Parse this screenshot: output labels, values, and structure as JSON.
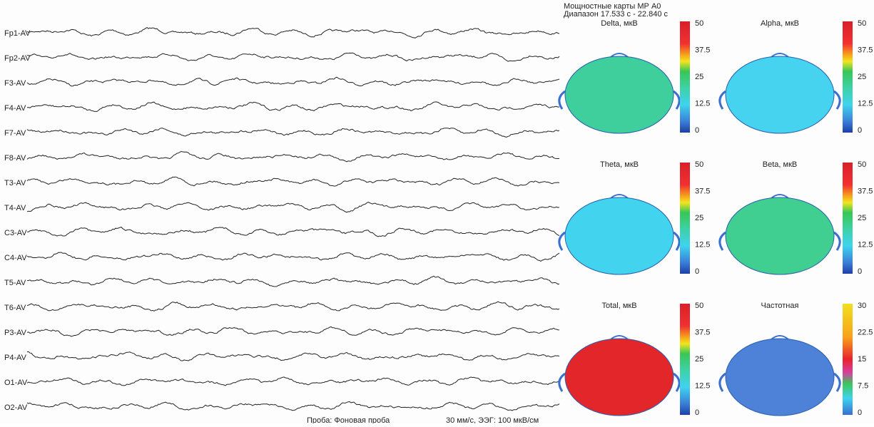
{
  "header": {
    "title": "Мощностные карты МР А0",
    "range": "Диапазон 17.533 с - 22.840 с"
  },
  "channels": [
    "Fp1-AV",
    "Fp2-AV",
    "F3-AV",
    "F4-AV",
    "F7-AV",
    "F8-AV",
    "T3-AV",
    "T4-AV",
    "C3-AV",
    "C4-AV",
    "T5-AV",
    "T6-AV",
    "P3-AV",
    "P4-AV",
    "O1-AV",
    "O2-AV"
  ],
  "maps": [
    {
      "title": "Delta, мкВ",
      "color": "#3fcf9c",
      "scale": [
        50,
        37.5,
        25,
        12.5,
        0
      ]
    },
    {
      "title": "Alpha, мкВ",
      "color": "#45d3ef",
      "scale": [
        50,
        37.5,
        25,
        12.5,
        0
      ]
    },
    {
      "title": "Theta, мкВ",
      "color": "#42d3ee",
      "scale": [
        50,
        37.5,
        25,
        12.5,
        0
      ]
    },
    {
      "title": "Beta, мкВ",
      "color": "#40cf90",
      "scale": [
        50,
        37.5,
        25,
        12.5,
        0
      ]
    },
    {
      "title": "Total, мкВ",
      "color": "#e3262a",
      "scale": [
        50,
        37.5,
        25,
        12.5,
        0
      ]
    },
    {
      "title": "Частотная",
      "color": "#4d82d8",
      "scale": [
        30,
        22.5,
        15,
        7.5,
        0
      ]
    }
  ],
  "footer": {
    "test": "Проба: Фоновая проба",
    "settings": "30 мм/с, ЭЭГ: 100 мкВ/см"
  }
}
